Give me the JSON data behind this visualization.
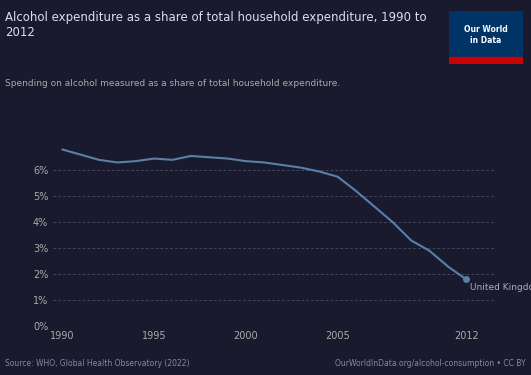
{
  "title": "Alcohol expenditure as a share of total household expenditure, 1990 to\n2012",
  "subtitle": "Spending on alcohol measured as a share of total household expenditure.",
  "source_left": "Source: WHO, Global Health Observatory (2022)",
  "source_right": "OurWorldInData.org/alcohol-consumption • CC BY",
  "series_label": "United Kingdom",
  "years": [
    1990,
    1991,
    1992,
    1993,
    1994,
    1995,
    1996,
    1997,
    1998,
    1999,
    2000,
    2001,
    2002,
    2003,
    2004,
    2005,
    2006,
    2007,
    2008,
    2009,
    2010,
    2011,
    2012
  ],
  "values": [
    6.8,
    6.6,
    6.4,
    6.3,
    6.35,
    6.45,
    6.4,
    6.55,
    6.5,
    6.45,
    6.35,
    6.3,
    6.2,
    6.1,
    5.95,
    5.75,
    5.2,
    4.6,
    4.0,
    3.3,
    2.9,
    2.3,
    1.8
  ],
  "line_color": "#5b7fa6",
  "bg_color": "#1a1a2e",
  "plot_bg": "#1a1a2e",
  "grid_color": "#3a3a5a",
  "text_color": "#cccccc",
  "ylim": [
    0,
    7.5
  ],
  "yticks": [
    0,
    1,
    2,
    3,
    4,
    5,
    6
  ],
  "xticks": [
    1990,
    1995,
    2000,
    2005,
    2012
  ],
  "logo_bg": "#003366",
  "logo_red": "#cc0000"
}
